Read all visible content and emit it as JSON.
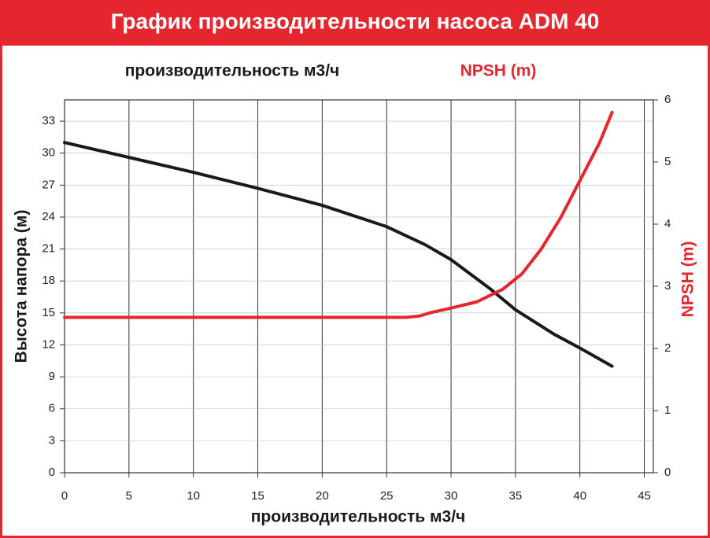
{
  "chart_data": {
    "type": "line",
    "title": "График производительности насоса ADM 40",
    "xlabel": "производительность м3/ч",
    "ylabel": "Высота напора (м)",
    "y2label": "NPSH (m)",
    "xlim": [
      0,
      45.7
    ],
    "xticks": [
      0,
      5,
      10,
      15,
      20,
      25,
      30,
      35,
      40,
      45
    ],
    "ylim": [
      0,
      35
    ],
    "yticks": [
      0,
      3,
      6,
      9,
      12,
      15,
      18,
      21,
      24,
      27,
      30,
      33
    ],
    "y2lim": [
      0,
      6
    ],
    "y2ticks": [
      0,
      1,
      2,
      3,
      4,
      5,
      6
    ],
    "grid": true,
    "series": [
      {
        "name": "производительность м3/ч",
        "color": "#1a1a1a",
        "x": [
          0,
          5,
          10,
          15,
          20,
          25,
          28,
          30,
          33,
          35,
          38,
          40,
          42.5
        ],
        "values": [
          31,
          29.6,
          28.2,
          26.7,
          25.1,
          23.1,
          21.4,
          20.0,
          17.3,
          15.3,
          13.0,
          11.7,
          10.0
        ]
      },
      {
        "name": "NPSH (m)",
        "color": "#e5262f",
        "axis": "y2",
        "x": [
          0,
          26.5,
          27.5,
          28.5,
          30,
          32,
          34,
          35.5,
          37,
          38.5,
          40,
          41.5,
          42.5
        ],
        "values": [
          2.5,
          2.5,
          2.52,
          2.58,
          2.65,
          2.75,
          2.95,
          3.2,
          3.6,
          4.1,
          4.7,
          5.3,
          5.8
        ]
      }
    ]
  }
}
